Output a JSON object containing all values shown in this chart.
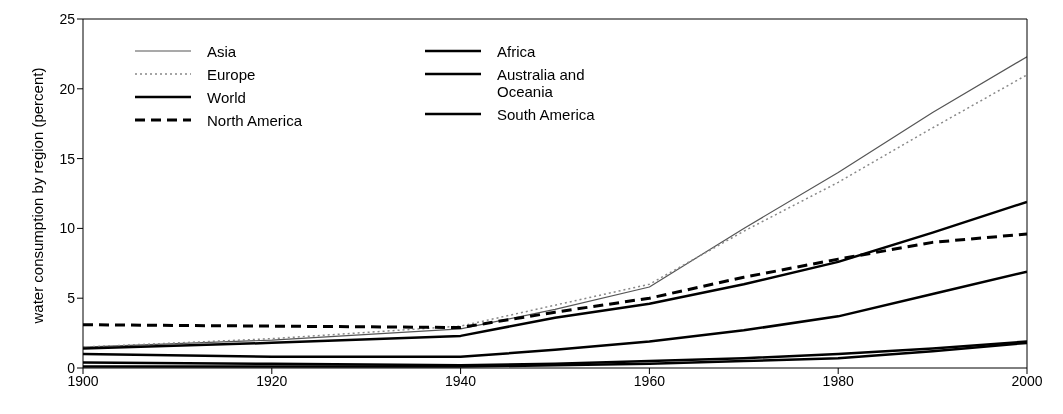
{
  "chart_data": {
    "type": "line",
    "ylabel": "water consumption by region (percent)",
    "x": [
      1900,
      1920,
      1940,
      1950,
      1960,
      1970,
      1980,
      1990,
      2000
    ],
    "series": [
      {
        "name": "Asia",
        "color": "#555555",
        "line_style": "solid",
        "values": [
          1.5,
          2.0,
          2.8,
          4.2,
          5.8,
          10.0,
          14.0,
          18.3,
          22.3
        ]
      },
      {
        "name": "Europe",
        "color": "#888888",
        "line_style": "dotted",
        "values": [
          1.5,
          2.1,
          3.0,
          4.5,
          6.0,
          9.8,
          13.3,
          17.2,
          21.0
        ]
      },
      {
        "name": "World",
        "color": "#000000",
        "line_style": "solid",
        "values": [
          1.4,
          1.8,
          2.3,
          3.6,
          4.6,
          6.0,
          7.6,
          9.7,
          11.9
        ]
      },
      {
        "name": "North America",
        "color": "#000000",
        "line_style": "dashed",
        "values": [
          3.1,
          3.0,
          2.9,
          4.0,
          5.0,
          6.5,
          7.8,
          9.0,
          9.6
        ]
      },
      {
        "name": "Africa",
        "color": "#000000",
        "line_style": "solid",
        "values": [
          1.0,
          0.8,
          0.8,
          1.3,
          1.9,
          2.7,
          3.7,
          5.3,
          6.9
        ]
      },
      {
        "name": "Australia and Oceania",
        "color": "#000000",
        "line_style": "solid",
        "values": [
          0.4,
          0.3,
          0.2,
          0.3,
          0.5,
          0.7,
          1.0,
          1.4,
          1.9
        ]
      },
      {
        "name": "South America",
        "color": "#000000",
        "line_style": "solid",
        "values": [
          0.1,
          0.1,
          0.1,
          0.2,
          0.3,
          0.5,
          0.7,
          1.2,
          1.8
        ]
      }
    ],
    "xlim": [
      1900,
      2000
    ],
    "xticks": [
      1900,
      1920,
      1940,
      1960,
      1980,
      2000
    ],
    "ylim": [
      0,
      25
    ],
    "yticks": [
      0,
      5,
      10,
      15,
      20,
      25
    ],
    "grid": false,
    "legend": "top left",
    "marker": "none"
  }
}
